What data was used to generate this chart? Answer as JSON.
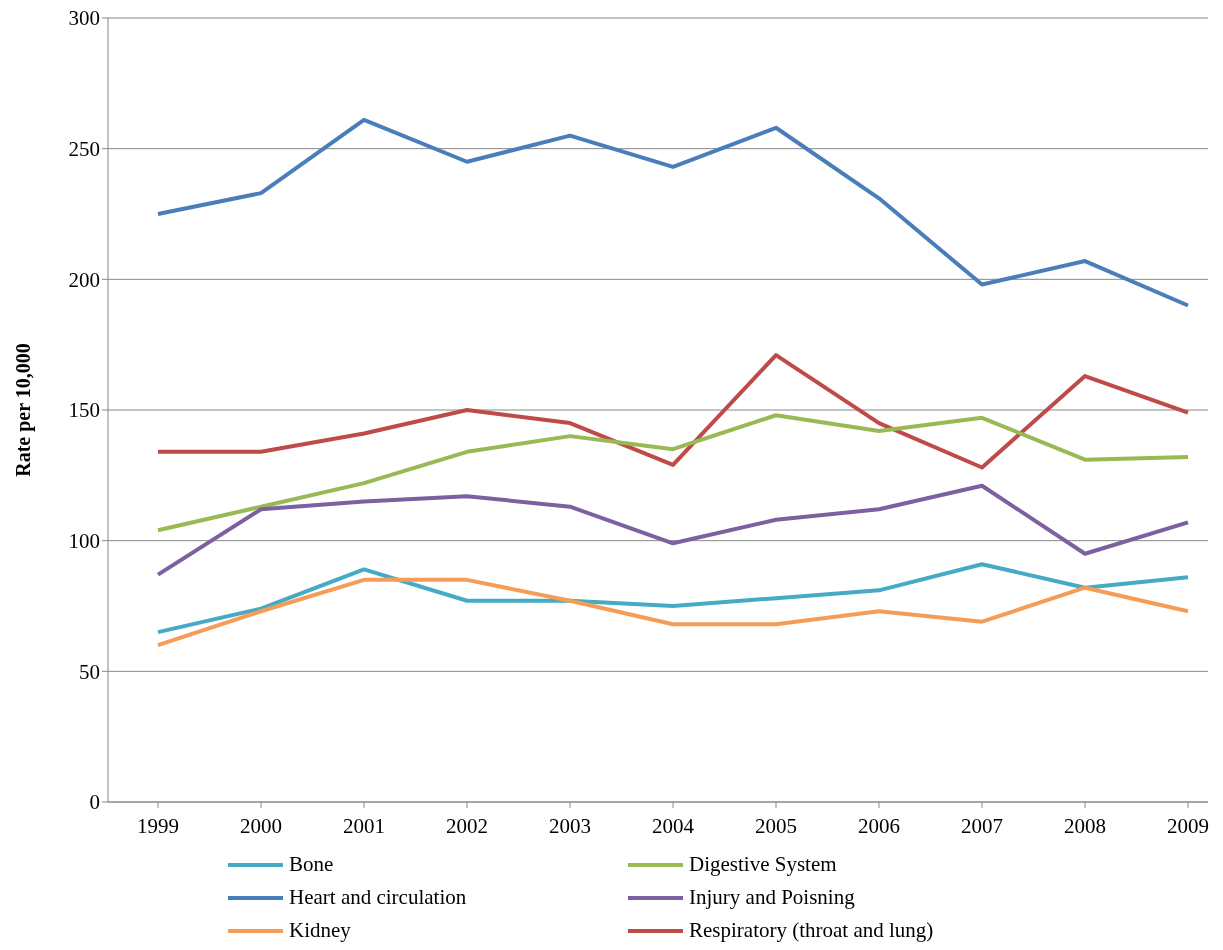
{
  "chart_data": {
    "type": "line",
    "ylabel": "Rate per 10,000",
    "categories": [
      "1999",
      "2000",
      "2001",
      "2002",
      "2003",
      "2004",
      "2005",
      "2006",
      "2007",
      "2008",
      "2009"
    ],
    "series": [
      {
        "name": "Heart and circulation",
        "color": "#4a7ebb",
        "values": [
          225,
          233,
          261,
          245,
          255,
          243,
          258,
          231,
          198,
          207,
          190
        ]
      },
      {
        "name": "Respiratory (throat and lung)",
        "color": "#be4b48",
        "values": [
          134,
          134,
          141,
          150,
          145,
          129,
          171,
          145,
          128,
          163,
          149
        ]
      },
      {
        "name": "Digestive System",
        "color": "#98b954",
        "values": [
          104,
          113,
          122,
          134,
          140,
          135,
          148,
          142,
          147,
          131,
          132
        ]
      },
      {
        "name": "Injury and Poisning",
        "color": "#7d60a0",
        "values": [
          87,
          112,
          115,
          117,
          113,
          99,
          108,
          112,
          121,
          95,
          107
        ]
      },
      {
        "name": "Bone",
        "color": "#46aac5",
        "values": [
          65,
          74,
          89,
          77,
          77,
          75,
          78,
          81,
          91,
          82,
          86
        ]
      },
      {
        "name": "Kidney",
        "color": "#f59d56",
        "values": [
          60,
          73,
          85,
          85,
          77,
          68,
          68,
          73,
          69,
          82,
          73
        ]
      }
    ],
    "ylim": [
      0,
      300
    ],
    "yticks": [
      0,
      50,
      100,
      150,
      200,
      250,
      300
    ],
    "grid": "y",
    "legend": "bottom",
    "marker": "none",
    "line_style": "solid"
  }
}
